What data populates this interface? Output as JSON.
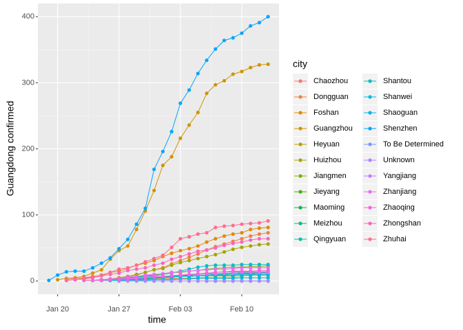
{
  "chart_data": {
    "type": "line",
    "xlabel": "time",
    "ylabel": "Guangdong confirmed",
    "legend_title": "city",
    "legend_position": "right",
    "grid": true,
    "x": [
      "Jan 19",
      "Jan 20",
      "Jan 21",
      "Jan 22",
      "Jan 23",
      "Jan 24",
      "Jan 25",
      "Jan 26",
      "Jan 27",
      "Jan 28",
      "Jan 29",
      "Jan 30",
      "Jan 31",
      "Feb 01",
      "Feb 02",
      "Feb 03",
      "Feb 04",
      "Feb 05",
      "Feb 06",
      "Feb 07",
      "Feb 08",
      "Feb 09",
      "Feb 10",
      "Feb 11",
      "Feb 12",
      "Feb 13"
    ],
    "xticks": [
      "Jan 20",
      "Jan 27",
      "Feb 03",
      "Feb 10"
    ],
    "ylim": [
      -20,
      420
    ],
    "yticks": [
      0,
      100,
      200,
      300,
      400
    ],
    "series": [
      {
        "name": "Chaozhou",
        "color": "#F8766D",
        "values": [
          null,
          null,
          null,
          null,
          null,
          null,
          1,
          1,
          1,
          1,
          2,
          2,
          3,
          3,
          4,
          4,
          4,
          5,
          5,
          5,
          5,
          5,
          5,
          5,
          5,
          5
        ]
      },
      {
        "name": "Dongguan",
        "color": "#EE8043",
        "values": [
          null,
          null,
          null,
          null,
          1,
          1,
          2,
          3,
          4,
          7,
          9,
          13,
          17,
          20,
          26,
          31,
          36,
          41,
          47,
          52,
          56,
          60,
          64,
          68,
          71,
          73
        ]
      },
      {
        "name": "Foshan",
        "color": "#E18A00",
        "values": [
          null,
          null,
          1,
          2,
          4,
          6,
          9,
          13,
          15,
          19,
          24,
          27,
          31,
          37,
          42,
          46,
          49,
          53,
          59,
          64,
          68,
          71,
          73,
          78,
          80,
          81
        ]
      },
      {
        "name": "Guangzhou",
        "color": "#D09400",
        "values": [
          null,
          2,
          4,
          5,
          7,
          12,
          17,
          33,
          46,
          53,
          78,
          106,
          137,
          175,
          188,
          216,
          236,
          255,
          284,
          297,
          303,
          313,
          317,
          323,
          327,
          328
        ]
      },
      {
        "name": "Heyuan",
        "color": "#BB9D00",
        "values": [
          null,
          null,
          null,
          null,
          null,
          1,
          1,
          1,
          1,
          1,
          2,
          2,
          2,
          3,
          3,
          3,
          4,
          4,
          5,
          5,
          5,
          5,
          5,
          5,
          5,
          5
        ]
      },
      {
        "name": "Huizhou",
        "color": "#A5A500",
        "values": [
          null,
          null,
          null,
          null,
          1,
          1,
          2,
          3,
          5,
          7,
          10,
          13,
          17,
          19,
          24,
          28,
          31,
          34,
          37,
          40,
          44,
          48,
          51,
          53,
          55,
          56
        ]
      },
      {
        "name": "Jiangmen",
        "color": "#7FAE00",
        "values": [
          null,
          null,
          null,
          null,
          null,
          1,
          2,
          3,
          3,
          5,
          6,
          8,
          9,
          11,
          13,
          13,
          15,
          16,
          18,
          19,
          20,
          21,
          21,
          22,
          22,
          23
        ]
      },
      {
        "name": "Jieyang",
        "color": "#39B600",
        "values": [
          null,
          null,
          null,
          null,
          null,
          null,
          1,
          1,
          2,
          2,
          3,
          3,
          4,
          5,
          6,
          7,
          7,
          8,
          8,
          8,
          8,
          8,
          8,
          9,
          9,
          9
        ]
      },
      {
        "name": "Maoming",
        "color": "#00BB4E",
        "values": [
          null,
          null,
          null,
          null,
          null,
          1,
          1,
          1,
          1,
          2,
          2,
          4,
          5,
          6,
          7,
          8,
          9,
          10,
          11,
          11,
          11,
          12,
          12,
          12,
          12,
          13
        ]
      },
      {
        "name": "Meizhou",
        "color": "#00BF7D",
        "values": [
          null,
          null,
          null,
          null,
          null,
          null,
          1,
          1,
          1,
          2,
          3,
          4,
          4,
          5,
          6,
          8,
          8,
          10,
          11,
          13,
          14,
          14,
          14,
          14,
          14,
          14
        ]
      },
      {
        "name": "Qingyuan",
        "color": "#00C0A6",
        "values": [
          null,
          null,
          null,
          null,
          null,
          null,
          1,
          1,
          2,
          2,
          3,
          4,
          5,
          6,
          6,
          7,
          7,
          8,
          9,
          10,
          10,
          11,
          11,
          11,
          12,
          12
        ]
      },
      {
        "name": "Shantou",
        "color": "#00BFC4",
        "values": [
          null,
          null,
          null,
          null,
          null,
          1,
          1,
          3,
          3,
          5,
          6,
          7,
          8,
          10,
          12,
          15,
          18,
          21,
          23,
          24,
          24,
          24,
          25,
          25,
          25,
          25
        ]
      },
      {
        "name": "Shanwei",
        "color": "#00BAE0",
        "values": [
          null,
          null,
          null,
          null,
          null,
          null,
          null,
          1,
          1,
          1,
          1,
          1,
          2,
          2,
          2,
          3,
          3,
          4,
          4,
          4,
          4,
          4,
          5,
          5,
          5,
          5
        ]
      },
      {
        "name": "Shaoguan",
        "color": "#00B2F3",
        "values": [
          null,
          null,
          null,
          null,
          null,
          null,
          1,
          1,
          1,
          2,
          3,
          4,
          5,
          6,
          6,
          7,
          7,
          8,
          8,
          9,
          9,
          9,
          10,
          10,
          10,
          10
        ]
      },
      {
        "name": "Shenzhen",
        "color": "#00A5FF",
        "values": [
          1,
          9,
          14,
          15,
          15,
          20,
          27,
          35,
          49,
          63,
          86,
          110,
          169,
          196,
          226,
          269,
          289,
          314,
          334,
          351,
          364,
          368,
          375,
          386,
          391,
          400
        ]
      },
      {
        "name": "To Be Determined",
        "color": "#7997FF",
        "values": [
          null,
          null,
          null,
          null,
          null,
          null,
          null,
          null,
          null,
          null,
          null,
          null,
          null,
          null,
          null,
          null,
          null,
          null,
          0,
          0,
          0,
          0,
          0,
          0,
          0,
          0
        ]
      },
      {
        "name": "Unknown",
        "color": "#A58AFF",
        "values": [
          null,
          null,
          null,
          null,
          null,
          null,
          null,
          null,
          0,
          0,
          0,
          0,
          0,
          0,
          0,
          0,
          0,
          0,
          0,
          0,
          0,
          0,
          0,
          0,
          0,
          0
        ]
      },
      {
        "name": "Yangjiang",
        "color": "#C77CFF",
        "values": [
          null,
          null,
          null,
          null,
          null,
          1,
          1,
          2,
          3,
          4,
          5,
          6,
          7,
          7,
          8,
          9,
          10,
          10,
          11,
          11,
          12,
          12,
          13,
          13,
          13,
          13
        ]
      },
      {
        "name": "Zhanjiang",
        "color": "#E76BF3",
        "values": [
          null,
          null,
          null,
          null,
          1,
          1,
          2,
          3,
          4,
          6,
          7,
          9,
          10,
          11,
          13,
          14,
          15,
          16,
          17,
          18,
          18,
          19,
          20,
          20,
          20,
          20
        ]
      },
      {
        "name": "Zhaoqing",
        "color": "#FA62DB",
        "values": [
          null,
          null,
          null,
          null,
          null,
          1,
          1,
          2,
          3,
          3,
          4,
          5,
          6,
          7,
          8,
          9,
          10,
          11,
          12,
          13,
          14,
          15,
          15,
          15,
          16,
          16
        ]
      },
      {
        "name": "Zhongshan",
        "color": "#FF62BC",
        "values": [
          null,
          null,
          1,
          2,
          3,
          5,
          8,
          10,
          12,
          16,
          18,
          20,
          24,
          27,
          33,
          37,
          41,
          45,
          47,
          50,
          54,
          57,
          59,
          62,
          64,
          64
        ]
      },
      {
        "name": "Zhuhai",
        "color": "#FF6C91",
        "values": [
          null,
          null,
          2,
          4,
          5,
          7,
          8,
          13,
          18,
          20,
          24,
          29,
          34,
          39,
          51,
          64,
          67,
          71,
          73,
          81,
          83,
          84,
          86,
          87,
          88,
          91
        ]
      }
    ]
  }
}
